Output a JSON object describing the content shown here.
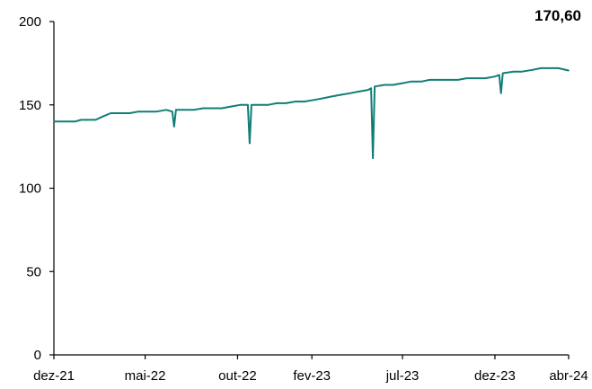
{
  "chart_data": {
    "type": "line",
    "last_value_label": "170,60",
    "line_color": "#117d76",
    "ylim": [
      0,
      200
    ],
    "yticks": [
      0,
      50,
      100,
      150,
      200
    ],
    "ytick_labels": [
      "0",
      "50",
      "100",
      "150",
      "200"
    ],
    "xtick_labels": [
      "dez-21",
      "mai-22",
      "out-22",
      "fev-23",
      "jul-23",
      "dez-23",
      "abr-24"
    ],
    "xtick_dates": [
      "2021-12-01",
      "2022-05-01",
      "2022-10-01",
      "2023-02-01",
      "2023-07-01",
      "2023-12-01",
      "2024-04-01"
    ],
    "xlim": [
      "2021-12-01",
      "2024-04-01"
    ],
    "grid": false,
    "series": [
      {
        "x": [
          "2021-12-01",
          "2021-12-20",
          "2022-01-05",
          "2022-01-15",
          "2022-01-25",
          "2022-02-08",
          "2022-02-20",
          "2022-03-05",
          "2022-03-20",
          "2022-04-05",
          "2022-04-20",
          "2022-05-05",
          "2022-05-20",
          "2022-06-05",
          "2022-06-15",
          "2022-06-18",
          "2022-06-21",
          "2022-07-05",
          "2022-07-20",
          "2022-08-05",
          "2022-08-20",
          "2022-09-05",
          "2022-09-20",
          "2022-10-05",
          "2022-10-18",
          "2022-10-21",
          "2022-10-24",
          "2022-11-05",
          "2022-11-20",
          "2022-12-05",
          "2022-12-20",
          "2023-01-05",
          "2023-01-20",
          "2023-02-05",
          "2023-02-20",
          "2023-03-05",
          "2023-03-20",
          "2023-04-05",
          "2023-04-20",
          "2023-05-05",
          "2023-05-10",
          "2023-05-13",
          "2023-05-16",
          "2023-06-01",
          "2023-06-15",
          "2023-07-01",
          "2023-07-15",
          "2023-08-01",
          "2023-08-15",
          "2023-09-01",
          "2023-09-15",
          "2023-10-01",
          "2023-10-15",
          "2023-11-01",
          "2023-11-15",
          "2023-12-01",
          "2023-12-08",
          "2023-12-11",
          "2023-12-14",
          "2024-01-01",
          "2024-01-15",
          "2024-02-01",
          "2024-02-15",
          "2024-03-01",
          "2024-03-15",
          "2024-04-01"
        ],
        "y": [
          140,
          140,
          140,
          141,
          141,
          141,
          143,
          145,
          145,
          145,
          146,
          146,
          146,
          147,
          146,
          137,
          147,
          147,
          147,
          148,
          148,
          148,
          149,
          150,
          150,
          127,
          150,
          150,
          150,
          151,
          151,
          152,
          152,
          153,
          154,
          155,
          156,
          157,
          158,
          159,
          160,
          118,
          161,
          162,
          162,
          163,
          164,
          164,
          165,
          165,
          165,
          165,
          166,
          166,
          166,
          167,
          168,
          157,
          169,
          170,
          170,
          171,
          172,
          172,
          172,
          170.6
        ]
      }
    ]
  }
}
